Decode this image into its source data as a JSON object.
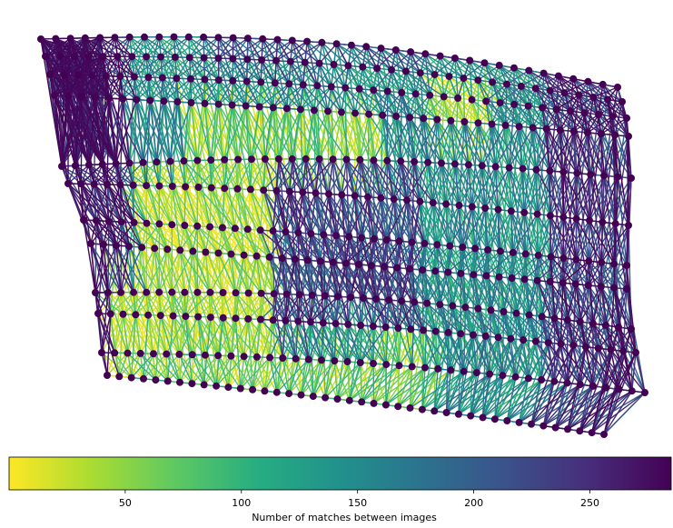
{
  "graph": {
    "rows": 12,
    "nodes_per_row": [
      40,
      41,
      42,
      43,
      43,
      44,
      44,
      43,
      43,
      44,
      43,
      42
    ],
    "node_color": "#440154",
    "edge_colormap": "viridis_reversed"
  },
  "colorbar": {
    "label": "Number of matches between images",
    "min": 0,
    "max": 285,
    "ticks": [
      50,
      100,
      150,
      200,
      250
    ],
    "orientation": "horizontal",
    "placement": "bottom"
  },
  "colors": {
    "viridis_low": "#fde725",
    "viridis_mid": "#21918c",
    "viridis_high": "#440154"
  }
}
